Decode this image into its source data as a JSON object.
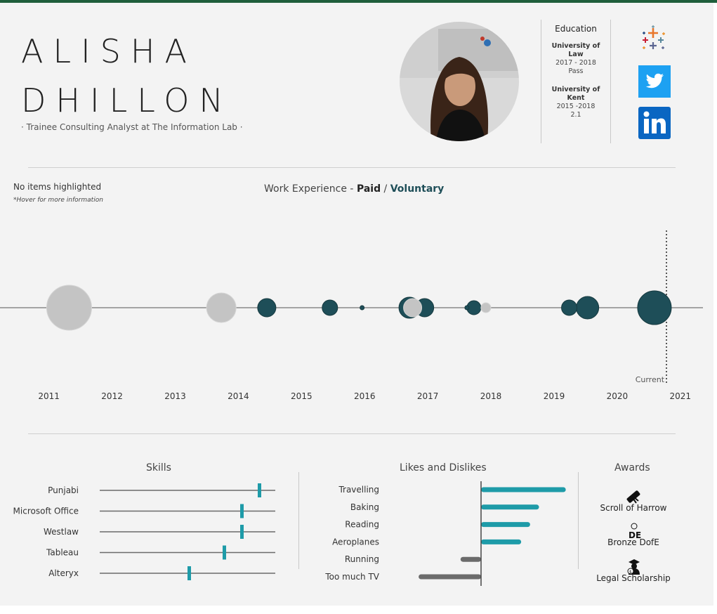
{
  "header": {
    "first_name": "ALISHA",
    "last_name": "DHILLON",
    "subtitle": "· Trainee Consulting Analyst at The Information Lab ·"
  },
  "education": {
    "title": "Education",
    "entries": [
      {
        "institution": "University of Law",
        "line1": "University of",
        "line2": "Law",
        "years": "2017 - 2018",
        "result": "Pass"
      },
      {
        "institution": "University of Kent",
        "line1": "University of",
        "line2": "Kent",
        "years": "2015 -2018",
        "result": "2.1"
      }
    ]
  },
  "social": {
    "icons": [
      "tableau-icon",
      "twitter-icon",
      "linkedin-icon"
    ],
    "colors": {
      "twitter": "#1da1f2",
      "linkedin": "#0a66c2"
    }
  },
  "status": {
    "highlight": "No items highlighted",
    "hint": "*Hover for more information"
  },
  "work_chart": {
    "title_prefix": "Work Experience - ",
    "paid": "Paid",
    "sep": " / ",
    "voluntary": "Voluntary",
    "current_label": "Current"
  },
  "sections": {
    "skills": "Skills",
    "likes": "Likes and Dislikes",
    "awards": "Awards"
  },
  "awards": [
    {
      "label": "Scroll of Harrow",
      "icon": "scroll-icon"
    },
    {
      "label": "Bronze DofE",
      "icon": "dofe-icon"
    },
    {
      "label": "Legal Scholarship",
      "icon": "graduate-icon"
    }
  ],
  "colors": {
    "paid": "#c4c4c4",
    "voluntary": "#1e4e58",
    "skill_marker": "#1e9ba8",
    "like": "#1e9ba8",
    "dislike": "#6b6b6b",
    "top_bar": "#1f5e3b"
  },
  "chart_data": [
    {
      "type": "scatter",
      "title": "Work Experience - Paid / Voluntary",
      "x_ticks": [
        "2011",
        "2012",
        "2013",
        "2014",
        "2015",
        "2016",
        "2017",
        "2018",
        "2019",
        "2020",
        "2021"
      ],
      "xlim": [
        2010.67,
        2021.08
      ],
      "current_marker": 2020.78,
      "points": [
        {
          "x": 2011.32,
          "size": 32,
          "series": "Paid"
        },
        {
          "x": 2013.73,
          "size": 21,
          "series": "Paid"
        },
        {
          "x": 2014.45,
          "size": 13,
          "series": "Voluntary"
        },
        {
          "x": 2015.45,
          "size": 11,
          "series": "Voluntary"
        },
        {
          "x": 2015.96,
          "size": 3,
          "series": "Voluntary"
        },
        {
          "x": 2016.71,
          "size": 15,
          "series": "Voluntary"
        },
        {
          "x": 2016.95,
          "size": 13,
          "series": "Voluntary"
        },
        {
          "x": 2016.76,
          "size": 13,
          "series": "Paid"
        },
        {
          "x": 2017.62,
          "size": 3,
          "series": "Voluntary"
        },
        {
          "x": 2017.73,
          "size": 10,
          "series": "Voluntary"
        },
        {
          "x": 2017.92,
          "size": 7,
          "series": "Paid"
        },
        {
          "x": 2019.24,
          "size": 11,
          "series": "Voluntary"
        },
        {
          "x": 2019.53,
          "size": 16,
          "series": "Voluntary"
        },
        {
          "x": 2020.59,
          "size": 24,
          "series": "Voluntary"
        }
      ]
    },
    {
      "type": "scatter",
      "title": "Skills",
      "categories": [
        "Punjabi",
        "Microsoft Office",
        "Westlaw",
        "Tableau",
        "Alteryx"
      ],
      "values": [
        91,
        81,
        81,
        71,
        51
      ],
      "xlim": [
        0,
        100
      ]
    },
    {
      "type": "bar",
      "title": "Likes and Dislikes",
      "categories": [
        "Travelling",
        "Baking",
        "Reading",
        "Aeroplanes",
        "Running",
        "Too much TV"
      ],
      "values": [
        9.5,
        6.5,
        5.5,
        4.5,
        -2.3,
        -7
      ],
      "xlim": [
        -7.5,
        10
      ]
    }
  ]
}
